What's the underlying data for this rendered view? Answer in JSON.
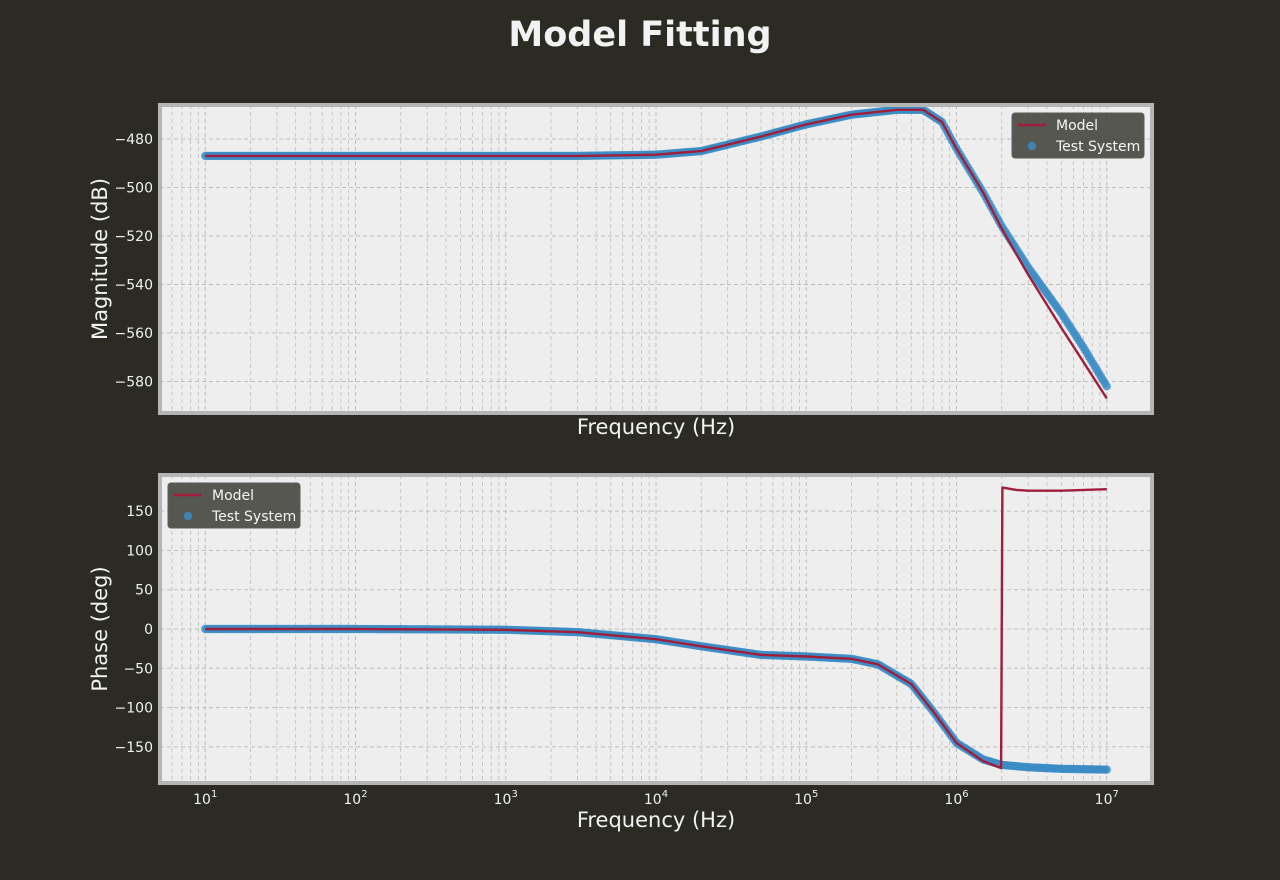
{
  "figure": {
    "title": "Model Fitting",
    "background": "#2b2b24",
    "panel_background": "#eeeeee",
    "panel_border": "#b5b5b5",
    "grid_color": "#bdbdbd"
  },
  "chart_data": [
    {
      "type": "line",
      "id": "magnitude",
      "title": "",
      "xlabel": "Frequency (Hz)",
      "ylabel": "Magnitude (dB)",
      "x_scale": "log",
      "xlim": [
        5,
        20000000
      ],
      "ylim": [
        -593,
        -466
      ],
      "yticks": [
        -480,
        -500,
        -520,
        -540,
        -560,
        -580
      ],
      "ytick_labels": [
        "−480",
        "−500",
        "−520",
        "−540",
        "−560",
        "−580"
      ],
      "grid": true,
      "legend": {
        "placement": "top-right",
        "entries": [
          "Model",
          "Test System"
        ]
      },
      "series": [
        {
          "name": "Model",
          "kind": "line",
          "color": "#a01e3c",
          "x": [
            10,
            100,
            1000,
            3000,
            10000,
            20000,
            50000,
            100000,
            200000,
            400000,
            600000,
            800000,
            1000000,
            1500000,
            2000000,
            3000000,
            5000000,
            7000000,
            10000000
          ],
          "y": [
            -487,
            -487,
            -487,
            -487,
            -486.5,
            -485,
            -479,
            -474,
            -470,
            -468,
            -468,
            -473,
            -484,
            -502,
            -517,
            -536,
            -558,
            -572,
            -587
          ]
        },
        {
          "name": "Test System",
          "kind": "scatter",
          "color": "#3b8cc4",
          "x": [
            10,
            100,
            1000,
            3000,
            10000,
            20000,
            50000,
            100000,
            200000,
            400000,
            600000,
            800000,
            1000000,
            1500000,
            2000000,
            3000000,
            5000000,
            7000000,
            10000000
          ],
          "y": [
            -487,
            -487,
            -487,
            -487,
            -486.5,
            -485,
            -479,
            -474,
            -470,
            -468,
            -468,
            -473,
            -484,
            -502,
            -516,
            -533,
            -552,
            -566,
            -582
          ]
        }
      ]
    },
    {
      "type": "line",
      "id": "phase",
      "title": "",
      "xlabel": "Frequency (Hz)",
      "ylabel": "Phase (deg)",
      "x_scale": "log",
      "xlim": [
        5,
        20000000
      ],
      "ylim": [
        -196,
        196
      ],
      "xticks": [
        10,
        100,
        1000,
        10000,
        100000,
        1000000,
        10000000
      ],
      "xtick_labels": [
        {
          "base": "10",
          "exp": "1"
        },
        {
          "base": "10",
          "exp": "2"
        },
        {
          "base": "10",
          "exp": "3"
        },
        {
          "base": "10",
          "exp": "4"
        },
        {
          "base": "10",
          "exp": "5"
        },
        {
          "base": "10",
          "exp": "6"
        },
        {
          "base": "10",
          "exp": "7"
        }
      ],
      "yticks": [
        150,
        100,
        50,
        0,
        -50,
        -100,
        -150
      ],
      "ytick_labels": [
        "150",
        "100",
        "50",
        "0",
        "−50",
        "−100",
        "−150"
      ],
      "grid": true,
      "legend": {
        "placement": "top-left",
        "entries": [
          "Model",
          "Test System"
        ]
      },
      "series": [
        {
          "name": "Model",
          "kind": "line",
          "color": "#a01e3c",
          "x": [
            10,
            100,
            1000,
            3000,
            10000,
            20000,
            50000,
            100000,
            200000,
            300000,
            500000,
            700000,
            1000000,
            1500000,
            1980000,
            2020000,
            2500000,
            3000000,
            5000000,
            10000000
          ],
          "y": [
            0,
            0,
            -1,
            -4,
            -13,
            -22,
            -33,
            -35,
            -38,
            -45,
            -70,
            -105,
            -145,
            -168,
            -177,
            180,
            177,
            176,
            176,
            178
          ]
        },
        {
          "name": "Test System",
          "kind": "scatter",
          "color": "#3b8cc4",
          "x": [
            10,
            100,
            1000,
            3000,
            10000,
            20000,
            50000,
            100000,
            200000,
            300000,
            500000,
            700000,
            1000000,
            1500000,
            2000000,
            3000000,
            5000000,
            10000000
          ],
          "y": [
            0,
            0,
            -1,
            -4,
            -13,
            -22,
            -33,
            -35,
            -38,
            -45,
            -70,
            -105,
            -145,
            -166,
            -173,
            -176,
            -178,
            -179
          ]
        }
      ]
    }
  ]
}
